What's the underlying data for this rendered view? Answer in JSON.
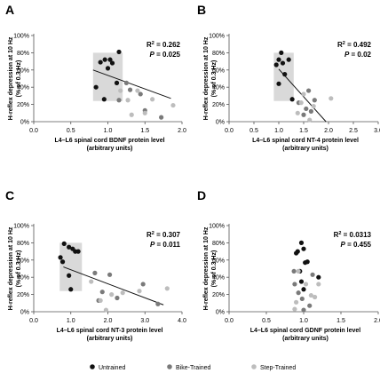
{
  "colors": {
    "untrained": "#111111",
    "bike": "#7a7a7a",
    "step": "#bdbdbd",
    "highlight": "#d9d9d9",
    "axis": "#555555"
  },
  "legend": {
    "items": [
      {
        "label": "Untrained",
        "color": "#111111"
      },
      {
        "label": "Bike-Trained",
        "color": "#7a7a7a"
      },
      {
        "label": "Step-Trained",
        "color": "#bdbdbd"
      }
    ]
  },
  "chart_data": [
    {
      "type": "scatter",
      "panel": "A",
      "xlabel": [
        "L4–L6 spinal cord BDNF protein level",
        "(arbitrary units)"
      ],
      "ylabel": [
        "H-reflex depression at 10 Hz",
        "(% of 0.3 Hz)"
      ],
      "xlim": [
        0,
        2.0
      ],
      "ylim": [
        0,
        100
      ],
      "xticks": [
        "0.0",
        "0.5",
        "1.0",
        "1.5",
        "2.0"
      ],
      "xtick_values": [
        0,
        0.5,
        1.0,
        1.5,
        2.0
      ],
      "yticks": [
        "0%",
        "20%",
        "40%",
        "60%",
        "80%",
        "100%"
      ],
      "ytick_values": [
        0,
        20,
        40,
        60,
        80,
        100
      ],
      "stats": {
        "r2": "0.262",
        "p": "0.025"
      },
      "highlight_box": {
        "x": [
          0.8,
          1.2
        ],
        "y": [
          24,
          80
        ]
      },
      "regression": {
        "x": [
          0.8,
          1.85
        ],
        "y": [
          60,
          27
        ]
      },
      "series": [
        {
          "name": "Untrained",
          "color": "#111111",
          "points": [
            [
              0.84,
              40
            ],
            [
              0.9,
              69
            ],
            [
              0.96,
              72
            ],
            [
              1.0,
              62
            ],
            [
              1.03,
              72
            ],
            [
              1.06,
              68
            ],
            [
              0.95,
              26
            ],
            [
              1.12,
              45
            ],
            [
              1.15,
              81
            ]
          ]
        },
        {
          "name": "Bike-Trained",
          "color": "#7a7a7a",
          "points": [
            [
              1.15,
              25
            ],
            [
              1.25,
              45
            ],
            [
              1.3,
              37
            ],
            [
              1.44,
              32
            ],
            [
              1.5,
              13
            ],
            [
              1.72,
              5
            ]
          ]
        },
        {
          "name": "Step-Trained",
          "color": "#bdbdbd",
          "points": [
            [
              1.17,
              36
            ],
            [
              1.27,
              25
            ],
            [
              1.32,
              8
            ],
            [
              1.4,
              36
            ],
            [
              1.5,
              10
            ],
            [
              1.6,
              26
            ],
            [
              1.88,
              19
            ]
          ]
        }
      ]
    },
    {
      "type": "scatter",
      "panel": "B",
      "xlabel": [
        "L4–L6 spinal cord NT-4 protein level",
        "(arbitrary units)"
      ],
      "ylabel": [
        "H-reflex depression at 10 Hz",
        "(% of 0.3 Hz)"
      ],
      "xlim": [
        0,
        3.0
      ],
      "ylim": [
        0,
        100
      ],
      "xticks": [
        "0.0",
        "0.5",
        "1.0",
        "1.5",
        "2.0",
        "2.5",
        "3.0"
      ],
      "xtick_values": [
        0,
        0.5,
        1.0,
        1.5,
        2.0,
        2.5,
        3.0
      ],
      "yticks": [
        "0%",
        "20%",
        "40%",
        "60%",
        "80%",
        "100%"
      ],
      "ytick_values": [
        0,
        20,
        40,
        60,
        80,
        100
      ],
      "stats": {
        "r2": "0.492",
        "p": "0.02"
      },
      "highlight_box": {
        "x": [
          0.9,
          1.3
        ],
        "y": [
          24,
          80
        ]
      },
      "regression": {
        "x": [
          1.0,
          1.95
        ],
        "y": [
          61,
          0
        ]
      },
      "series": [
        {
          "name": "Untrained",
          "color": "#111111",
          "points": [
            [
              0.95,
              66
            ],
            [
              1.0,
              72
            ],
            [
              1.08,
              68
            ],
            [
              1.05,
              80
            ],
            [
              1.2,
              72
            ],
            [
              1.12,
              55
            ],
            [
              1.0,
              44
            ],
            [
              1.27,
              26
            ]
          ]
        },
        {
          "name": "Bike-Trained",
          "color": "#7a7a7a",
          "points": [
            [
              1.4,
              22
            ],
            [
              1.5,
              8
            ],
            [
              1.55,
              15
            ],
            [
              1.6,
              36
            ],
            [
              1.72,
              25
            ],
            [
              1.65,
              12
            ]
          ]
        },
        {
          "name": "Step-Trained",
          "color": "#bdbdbd",
          "points": [
            [
              1.38,
              10
            ],
            [
              1.45,
              22
            ],
            [
              1.5,
              32
            ],
            [
              1.62,
              2
            ],
            [
              1.7,
              18
            ],
            [
              2.05,
              27
            ]
          ]
        }
      ]
    },
    {
      "type": "scatter",
      "panel": "C",
      "xlabel": [
        "L4–L6 spinal cord NT-3 protein level",
        "(arbitrary units)"
      ],
      "ylabel": [
        "H-reflex depression at 10 Hz",
        "(% of 0.3 Hz)"
      ],
      "xlim": [
        0,
        4.0
      ],
      "ylim": [
        0,
        100
      ],
      "xticks": [
        "0.0",
        "1.0",
        "2.0",
        "3.0",
        "4.0"
      ],
      "xtick_values": [
        0,
        1.0,
        2.0,
        3.0,
        4.0
      ],
      "yticks": [
        "0%",
        "20%",
        "40%",
        "60%",
        "80%",
        "100%"
      ],
      "ytick_values": [
        0,
        20,
        40,
        60,
        80,
        100
      ],
      "stats": {
        "r2": "0.307",
        "p": "0.011"
      },
      "highlight_box": {
        "x": [
          0.7,
          1.3
        ],
        "y": [
          24,
          80
        ]
      },
      "regression": {
        "x": [
          0.8,
          3.5
        ],
        "y": [
          52,
          8
        ]
      },
      "series": [
        {
          "name": "Untrained",
          "color": "#111111",
          "points": [
            [
              0.72,
              63
            ],
            [
              0.78,
              58
            ],
            [
              0.82,
              79
            ],
            [
              0.95,
              75
            ],
            [
              1.05,
              73
            ],
            [
              1.12,
              70
            ],
            [
              1.2,
              70
            ],
            [
              0.95,
              42
            ],
            [
              1.0,
              26
            ]
          ]
        },
        {
          "name": "Bike-Trained",
          "color": "#7a7a7a",
          "points": [
            [
              1.65,
              45
            ],
            [
              1.75,
              13
            ],
            [
              1.85,
              23
            ],
            [
              2.05,
              43
            ],
            [
              2.25,
              16
            ],
            [
              2.95,
              32
            ],
            [
              3.35,
              9
            ]
          ]
        },
        {
          "name": "Step-Trained",
          "color": "#bdbdbd",
          "points": [
            [
              1.55,
              35
            ],
            [
              1.8,
              13
            ],
            [
              1.95,
              2
            ],
            [
              2.4,
              22
            ],
            [
              2.85,
              24
            ],
            [
              3.6,
              27
            ],
            [
              2.1,
              20
            ]
          ]
        }
      ]
    },
    {
      "type": "scatter",
      "panel": "D",
      "xlabel": [
        "L4–L6 spinal cord GDNF protein level",
        "(arbitrary units)"
      ],
      "ylabel": [
        "H-reflex depression at 10 Hz",
        "(% of 0.3 Hz)"
      ],
      "xlim": [
        0,
        2.0
      ],
      "ylim": [
        0,
        100
      ],
      "xticks": [
        "0.0",
        "0.5",
        "1.0",
        "1.5",
        "2.0"
      ],
      "xtick_values": [
        0,
        0.5,
        1.0,
        1.5,
        2.0
      ],
      "yticks": [
        "0%",
        "20%",
        "40%",
        "60%",
        "80%",
        "100%"
      ],
      "ytick_values": [
        0,
        20,
        40,
        60,
        80,
        100
      ],
      "stats": {
        "r2": "0.0313",
        "p": "0.455"
      },
      "highlight_box": null,
      "regression": null,
      "series": [
        {
          "name": "Untrained",
          "color": "#111111",
          "points": [
            [
              0.92,
              70
            ],
            [
              0.9,
              68
            ],
            [
              0.97,
              80
            ],
            [
              1.0,
              73
            ],
            [
              1.02,
              57
            ],
            [
              0.95,
              47
            ],
            [
              1.05,
              58
            ],
            [
              0.97,
              35
            ],
            [
              1.0,
              26
            ],
            [
              1.2,
              40
            ]
          ]
        },
        {
          "name": "Bike-Trained",
          "color": "#7a7a7a",
          "points": [
            [
              0.88,
              32
            ],
            [
              0.87,
              47
            ],
            [
              0.93,
              22
            ],
            [
              0.98,
              15
            ],
            [
              1.0,
              2
            ],
            [
              1.08,
              7
            ],
            [
              1.12,
              43
            ]
          ]
        },
        {
          "name": "Step-Trained",
          "color": "#bdbdbd",
          "points": [
            [
              0.9,
              11
            ],
            [
              0.93,
              47
            ],
            [
              1.03,
              32
            ],
            [
              1.1,
              19
            ],
            [
              1.15,
              17
            ],
            [
              1.2,
              32
            ],
            [
              0.88,
              3
            ]
          ]
        }
      ]
    }
  ]
}
